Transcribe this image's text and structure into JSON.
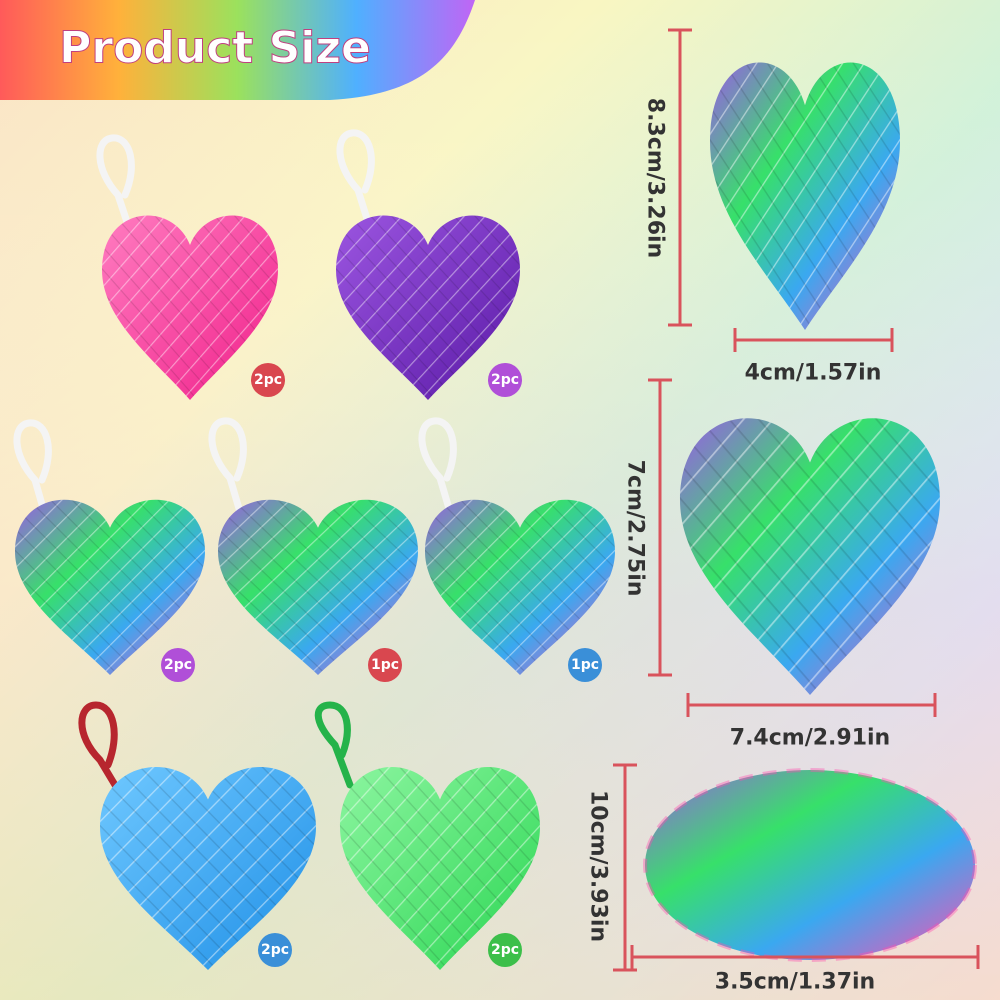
{
  "header": {
    "title": "Product Size"
  },
  "items": [
    {
      "badge": "2pc"
    },
    {
      "badge": "2pc"
    },
    {
      "badge": "2pc"
    },
    {
      "badge": "1pc"
    },
    {
      "badge": "1pc"
    },
    {
      "badge": "2pc"
    },
    {
      "badge": "2pc"
    }
  ],
  "dimensions": [
    {
      "height": "8.3cm/3.26in",
      "width": "4cm/1.57in"
    },
    {
      "height": "7cm/2.75in",
      "width": "7.4cm/2.91in"
    },
    {
      "height": "10cm/3.93in",
      "width": "3.5cm/1.37in"
    }
  ]
}
